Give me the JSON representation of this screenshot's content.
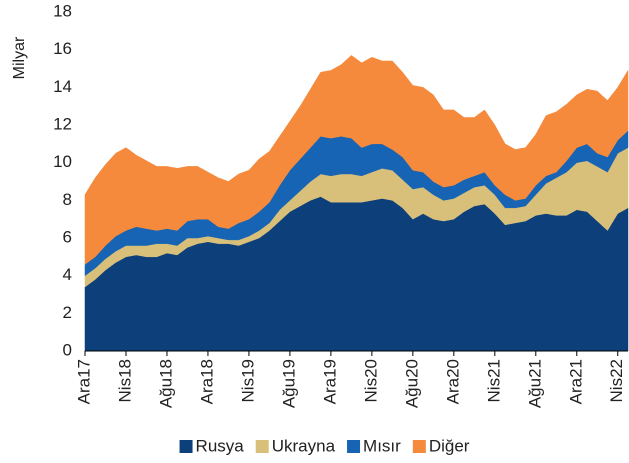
{
  "chart_data": {
    "type": "stacked_area",
    "y_axis_label": "Milyar",
    "categories": [
      "Ara17",
      null,
      null,
      null,
      "Nis18",
      null,
      null,
      null,
      "Ağu18",
      null,
      null,
      null,
      "Ara18",
      null,
      null,
      null,
      "Nis19",
      null,
      null,
      null,
      "Ağu19",
      null,
      null,
      null,
      "Ara19",
      null,
      null,
      null,
      "Nis20",
      null,
      null,
      null,
      "Ağu20",
      null,
      null,
      null,
      "Ara20",
      null,
      null,
      null,
      "Nis21",
      null,
      null,
      null,
      "Ağu21",
      null,
      null,
      null,
      "Ara21",
      null,
      null,
      null,
      "Nis22",
      null
    ],
    "series": [
      {
        "name": "Rusya",
        "color": "#0d3f7a",
        "values": [
          3.4,
          3.8,
          4.3,
          4.7,
          5.0,
          5.1,
          5.0,
          5.0,
          5.2,
          5.1,
          5.5,
          5.7,
          5.8,
          5.7,
          5.7,
          5.6,
          5.8,
          6.0,
          6.4,
          6.9,
          7.4,
          7.7,
          8.0,
          8.2,
          7.9,
          7.9,
          7.9,
          7.9,
          8.0,
          8.1,
          8.0,
          7.6,
          7.0,
          7.3,
          7.0,
          6.9,
          7.0,
          7.4,
          7.7,
          7.8,
          7.3,
          6.7,
          6.8,
          6.9,
          7.2,
          7.3,
          7.2,
          7.2,
          7.5,
          7.4,
          6.9,
          6.4,
          7.3,
          7.6
        ]
      },
      {
        "name": "Ukrayna",
        "color": "#d8c07a",
        "values": [
          0.6,
          0.6,
          0.6,
          0.6,
          0.6,
          0.5,
          0.6,
          0.7,
          0.5,
          0.5,
          0.5,
          0.3,
          0.3,
          0.3,
          0.2,
          0.3,
          0.3,
          0.4,
          0.4,
          0.6,
          0.6,
          0.8,
          1.0,
          1.2,
          1.4,
          1.5,
          1.5,
          1.4,
          1.5,
          1.6,
          1.6,
          1.5,
          1.6,
          1.4,
          1.3,
          1.1,
          1.1,
          1.0,
          1.0,
          1.0,
          1.0,
          0.9,
          0.8,
          0.8,
          1.1,
          1.6,
          2.0,
          2.3,
          2.5,
          2.7,
          2.9,
          3.1,
          3.2,
          3.2
        ]
      },
      {
        "name": "Mısır",
        "color": "#1664b3",
        "values": [
          0.6,
          0.6,
          0.7,
          0.8,
          0.8,
          1.0,
          0.9,
          0.7,
          0.8,
          0.8,
          0.9,
          1.0,
          0.9,
          0.6,
          0.6,
          0.9,
          0.9,
          1.0,
          1.1,
          1.3,
          1.6,
          1.7,
          1.8,
          2.0,
          2.0,
          2.0,
          1.9,
          1.5,
          1.5,
          1.3,
          1.1,
          1.2,
          1.0,
          0.8,
          0.7,
          0.7,
          0.7,
          0.7,
          0.6,
          0.7,
          0.5,
          0.7,
          0.4,
          0.4,
          0.5,
          0.4,
          0.3,
          0.6,
          0.8,
          0.9,
          0.7,
          0.8,
          0.7,
          0.9
        ]
      },
      {
        "name": "Diğer",
        "color": "#f58a3c",
        "values": [
          3.7,
          4.2,
          4.3,
          4.4,
          4.4,
          3.8,
          3.6,
          3.4,
          3.3,
          3.3,
          2.9,
          2.8,
          2.5,
          2.6,
          2.5,
          2.6,
          2.6,
          2.8,
          2.7,
          2.6,
          2.6,
          2.8,
          3.1,
          3.4,
          3.6,
          3.8,
          4.4,
          4.5,
          4.6,
          4.4,
          4.7,
          4.5,
          4.5,
          4.5,
          4.6,
          4.1,
          4.0,
          3.3,
          3.1,
          3.3,
          3.2,
          2.7,
          2.7,
          2.7,
          2.7,
          3.2,
          3.2,
          3.0,
          2.8,
          2.9,
          3.3,
          3.0,
          2.8,
          3.2
        ]
      }
    ],
    "ylim": [
      0,
      18
    ],
    "yticks": [
      0,
      2,
      4,
      6,
      8,
      10,
      12,
      14,
      16,
      18
    ],
    "grid": false,
    "legend": "bottom"
  }
}
